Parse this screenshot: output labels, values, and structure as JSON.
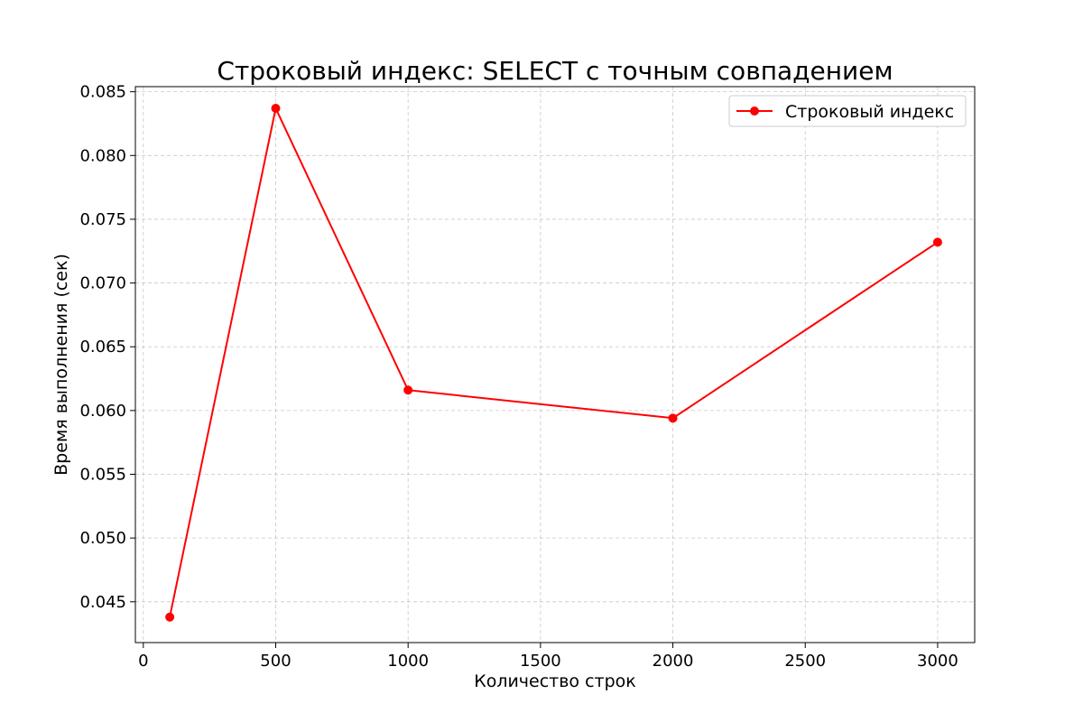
{
  "chart_data": {
    "type": "line",
    "title": "Строковый индекс: SELECT с точным совпадением",
    "xlabel": "Количество строк",
    "ylabel": "Время выполнения (сек)",
    "xlim": [
      -30,
      3140
    ],
    "ylim": [
      0.0418,
      0.0854
    ],
    "xticks": [
      0,
      500,
      1000,
      1500,
      2000,
      2500,
      3000
    ],
    "yticks": [
      0.045,
      0.05,
      0.055,
      0.06,
      0.065,
      0.07,
      0.075,
      0.08,
      0.085
    ],
    "xtick_labels": [
      "0",
      "500",
      "1000",
      "1500",
      "2000",
      "2500",
      "3000"
    ],
    "ytick_labels": [
      "0.045",
      "0.050",
      "0.055",
      "0.060",
      "0.065",
      "0.070",
      "0.075",
      "0.080",
      "0.085"
    ],
    "grid": true,
    "legend_position": "top-right",
    "series": [
      {
        "name": "Строковый индекс",
        "color": "#ff0000",
        "marker": "circle",
        "x": [
          100,
          500,
          1000,
          2000,
          3000
        ],
        "y": [
          0.0438,
          0.0837,
          0.0616,
          0.0594,
          0.0732
        ]
      }
    ]
  }
}
